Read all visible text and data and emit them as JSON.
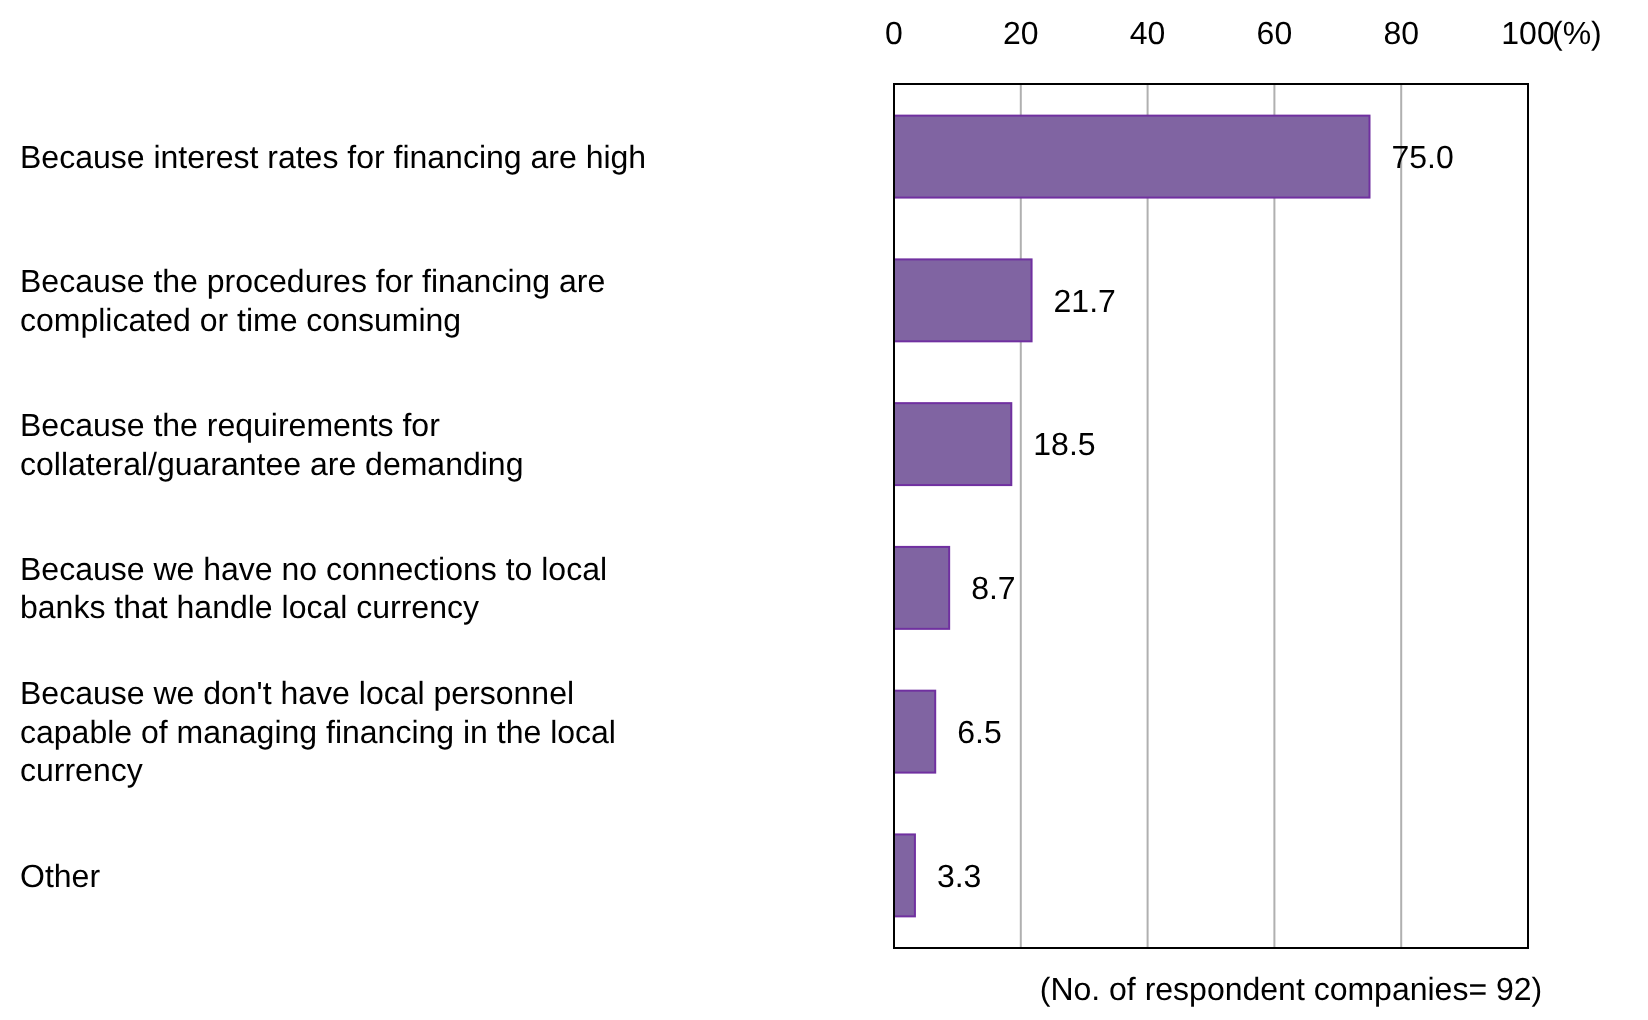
{
  "chart_data": {
    "type": "bar",
    "orientation": "horizontal",
    "categories": [
      "Because interest rates for financing are high",
      "Because the procedures for financing are complicated or time consuming",
      "Because the requirements for collateral/guarantee are demanding",
      "Because we have no connections to local banks that handle local currency",
      "Because we don't have local personnel capable of managing financing in the local currency",
      "Other"
    ],
    "values": [
      75.0,
      21.7,
      18.5,
      8.7,
      6.5,
      3.3
    ],
    "color": "#8064a2",
    "x2lim": [
      0,
      100
    ],
    "x2ticks": [
      0,
      20,
      40,
      60,
      80,
      100
    ],
    "x2label": "(%)",
    "grid": "x",
    "value_labels": [
      "75.0",
      "21.7",
      "18.5",
      "8.7",
      "6.5",
      "3.3"
    ],
    "annotations": [
      "(No. of respondent companies= 92)"
    ]
  }
}
